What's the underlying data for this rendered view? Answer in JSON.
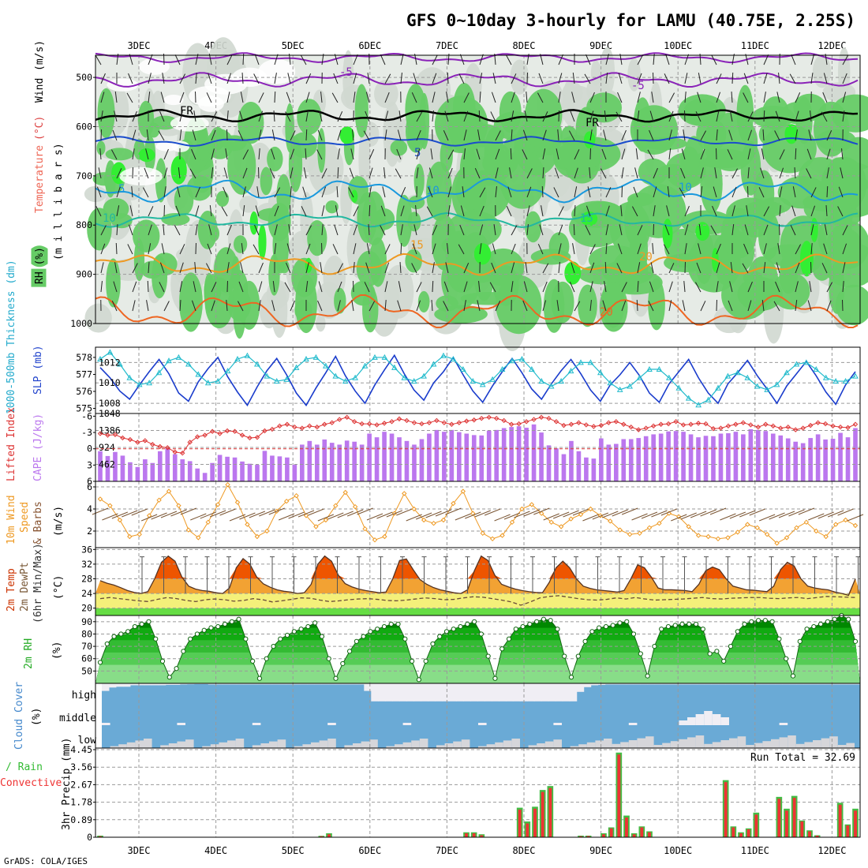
{
  "title": "GFS 0~10day 3-hourly for LAMU (40.75E, 2.25S)",
  "footer": "GrADS: COLA/IGES",
  "days": [
    "3DEC",
    "4DEC",
    "5DEC",
    "6DEC",
    "7DEC",
    "8DEC",
    "9DEC",
    "10DEC",
    "11DEC",
    "12DEC"
  ],
  "colors": {
    "grid": "#9a9a9a",
    "rh_green": "#66cc66",
    "rh_bright": "#33ee33",
    "rh_pale": "#d0d8d0",
    "slp": "#1a3ccc",
    "thick": "#22bbcc",
    "li": "#dd3333",
    "cape": "#bb77ee",
    "wind": "#ee9922",
    "temp_hot": "#ee5500",
    "temp_warm": "#f2a233",
    "dew_band": "#f4f07a",
    "green_band": "#66dd44",
    "rh_dark": "#009900",
    "cloud": "#6aaad6",
    "cloud_pale": "#f0eef4",
    "rain": "#ee3333",
    "total": "#44bb44"
  },
  "panels": {
    "upper": {
      "ylabel_parts": [
        "RH (%)",
        "Temperature",
        "(°C)",
        "Wind",
        "(m/s)"
      ],
      "yunit": "(m i l l i b a r s)",
      "yticks": [
        "500",
        "600",
        "700",
        "800",
        "900",
        "1000"
      ],
      "contour_labels": [
        "-5",
        "-5",
        "FR",
        "FR",
        "5",
        "5",
        "10",
        "10",
        "10",
        "15",
        "15",
        "20",
        "20",
        "25"
      ]
    },
    "slp": {
      "ylabel_left": "1000-500mb Thickness (dm)",
      "ylabel_right": "SLP (mb)",
      "left_ticks": [
        "578",
        "577",
        "576",
        "575"
      ],
      "right_ticks": [
        "1012",
        "1010",
        "1008"
      ]
    },
    "cape": {
      "ylabel_left": "Lifted Index",
      "ylabel_right": "CAPE (J/kg)",
      "left_ticks": [
        "-6",
        "-3",
        "0",
        "3",
        "6"
      ],
      "right_ticks": [
        "1848",
        "1386",
        "924",
        "462"
      ]
    },
    "wind10": {
      "ylabel": [
        "10m Wind",
        "Speed",
        "& Barbs"
      ],
      "yunit": "(m/s)",
      "yticks": [
        "6",
        "4",
        "2"
      ]
    },
    "temp2m": {
      "ylabel": [
        "2m Temp",
        "2m DewPt",
        "(6hr Min/Max)"
      ],
      "yunit": "(°C)",
      "yticks": [
        "36",
        "32",
        "28",
        "24",
        "20"
      ]
    },
    "rh2m": {
      "ylabel": "2m RH",
      "yunit": "(%)",
      "yticks": [
        "90",
        "80",
        "70",
        "60",
        "50"
      ]
    },
    "cloud": {
      "ylabel": "Cloud Cover",
      "yunit": "(%)",
      "levels": [
        "high",
        "middle",
        "low"
      ]
    },
    "precip": {
      "ylabel_green": "Total / Rain",
      "ylabel_red": "Convective",
      "yunit": "3hr Precip (mm)",
      "yticks": [
        "4.45",
        "3.56",
        "2.67",
        "1.78",
        "0.89",
        "0"
      ],
      "run_total": "Run Total = 32.69"
    }
  },
  "chart_data": [
    {
      "type": "line",
      "name": "SLP",
      "units": "mb",
      "ylim": [
        1007,
        1013.5
      ],
      "values": [
        1011.5,
        1010.5,
        1009.2,
        1008.4,
        1009.8,
        1011.1,
        1012.3,
        1010.9,
        1009.0,
        1008.2,
        1010.1,
        1011.4,
        1012.5,
        1010.6,
        1009.1,
        1007.8,
        1009.6,
        1011.2,
        1012.4,
        1010.8,
        1009.0,
        1007.8,
        1009.5,
        1011.0,
        1012.6,
        1010.7,
        1009.2,
        1008.0,
        1009.8,
        1011.3,
        1012.7,
        1010.9,
        1009.3,
        1008.3,
        1010.0,
        1011.1,
        1012.5,
        1010.8,
        1009.2,
        1008.1,
        1009.7,
        1011.1,
        1012.4,
        1011.0,
        1009.4,
        1008.4,
        1009.9,
        1011.2,
        1012.3,
        1010.9,
        1009.3,
        1008.2,
        1009.8,
        1010.8,
        1012.0,
        1010.7,
        1009.0,
        1008.1,
        1009.9,
        1011.1,
        1012.3,
        1010.5,
        1009.0,
        1008.0,
        1009.9,
        1011.0,
        1012.2,
        1010.7,
        1009.4,
        1008.0,
        1009.7,
        1010.9,
        1012.1,
        1010.7,
        1009.1,
        1007.9,
        1009.8,
        1011.1
      ]
    },
    {
      "type": "line",
      "name": "Thickness",
      "units": "dm",
      "ylim": [
        574.7,
        578.6
      ],
      "values": [
        577.9,
        578.3,
        577.6,
        576.8,
        576.4,
        576.5,
        577.1,
        577.8,
        578.0,
        577.6,
        577.0,
        576.5,
        576.6,
        577.2,
        577.9,
        578.1,
        577.6,
        576.9,
        576.6,
        576.7,
        577.4,
        577.9,
        578.0,
        577.5,
        576.9,
        576.6,
        576.8,
        577.5,
        578.0,
        578.0,
        577.4,
        576.8,
        576.6,
        576.9,
        577.6,
        578.1,
        577.9,
        577.3,
        576.6,
        576.4,
        576.7,
        577.3,
        577.8,
        577.9,
        577.3,
        576.6,
        576.3,
        576.6,
        577.2,
        577.7,
        577.7,
        577.1,
        576.5,
        576.1,
        576.3,
        576.8,
        577.3,
        577.3,
        576.8,
        576.2,
        575.6,
        575.2,
        575.5,
        576.2,
        576.9,
        577.1,
        576.8,
        576.3,
        576.1,
        576.4,
        577.1,
        577.6,
        577.7,
        577.3,
        576.8,
        576.6,
        576.6,
        576.9
      ]
    },
    {
      "type": "bar",
      "name": "CAPE",
      "units": "J/kg",
      "ylim": [
        0,
        1848
      ],
      "values": [
        820,
        690,
        800,
        700,
        520,
        390,
        600,
        500,
        820,
        900,
        740,
        600,
        550,
        350,
        230,
        500,
        720,
        670,
        650,
        540,
        480,
        450,
        830,
        700,
        680,
        650,
        450,
        1000,
        1100,
        1000,
        1140,
        1050,
        1000,
        1110,
        1080,
        1000,
        1300,
        1200,
        1350,
        1300,
        1200,
        1100,
        1000,
        1150,
        1300,
        1400,
        1350,
        1400,
        1340,
        1300,
        1260,
        1250,
        1380,
        1400,
        1450,
        1480,
        1500,
        1460,
        1550,
        1330,
        980,
        900,
        740,
        1100,
        820,
        650,
        620,
        1170,
        1000,
        1020,
        1150,
        1150,
        1180,
        1230,
        1280,
        1300,
        1360,
        1370,
        1350,
        1280,
        1200,
        1240,
        1230,
        1300,
        1310,
        1350,
        1280,
        1420,
        1400,
        1370,
        1300,
        1250,
        1170,
        1080,
        1040,
        1180,
        1280,
        1140,
        1160,
        1320,
        1200,
        1450
      ]
    },
    {
      "type": "line",
      "name": "Lifted Index",
      "ylim": [
        6,
        -6.5
      ],
      "values": [
        -2.8,
        -2.5,
        -2.6,
        -2.0,
        -1.7,
        -1.2,
        -1.5,
        -0.8,
        -0.4,
        -0.2,
        0.6,
        0.8,
        -1.2,
        -2.2,
        -2.5,
        -3.2,
        -2.8,
        -3.3,
        -3.2,
        -2.5,
        -2.0,
        -2.1,
        -3.3,
        -3.6,
        -4.2,
        -4.5,
        -4.0,
        -3.8,
        -4.2,
        -4.0,
        -4.5,
        -4.8,
        -5.4,
        -5.8,
        -5.0,
        -4.6,
        -4.6,
        -4.4,
        -4.7,
        -5.0,
        -5.5,
        -5.2,
        -4.8,
        -4.6,
        -4.8,
        -5.2,
        -4.8,
        -4.5,
        -4.8,
        -5.1,
        -5.3,
        -5.6,
        -5.8,
        -5.6,
        -5.2,
        -4.5,
        -4.6,
        -5.0,
        -5.4,
        -5.8,
        -5.6,
        -5.0,
        -4.3,
        -4.5,
        -4.8,
        -4.4,
        -4.1,
        -4.3,
        -4.8,
        -5.0,
        -4.5,
        -4.0,
        -3.5,
        -3.8,
        -4.2,
        -4.5,
        -4.6,
        -5.0,
        -4.4,
        -4.5,
        -4.7,
        -4.6,
        -3.7,
        -3.8,
        -4.2,
        -4.5,
        -4.8,
        -4.4,
        -4.0,
        -4.5,
        -4.2,
        -3.8,
        -4.0,
        -3.5,
        -3.8,
        -4.3,
        -4.8,
        -4.6,
        -4.2,
        -4.0,
        -3.9,
        -4.5
      ]
    },
    {
      "type": "line",
      "name": "10m Wind Speed",
      "units": "m/s",
      "ylim": [
        0.5,
        6.5
      ],
      "values": [
        4.9,
        4.3,
        3.0,
        1.5,
        1.7,
        3.4,
        4.8,
        5.6,
        4.3,
        2.1,
        1.4,
        2.8,
        4.4,
        6.2,
        4.6,
        2.6,
        1.5,
        2.0,
        3.8,
        4.7,
        5.2,
        3.4,
        2.4,
        3.0,
        4.3,
        5.5,
        4.2,
        2.2,
        1.2,
        1.5,
        3.6,
        5.4,
        4.0,
        3.0,
        2.7,
        3.0,
        4.5,
        5.6,
        3.6,
        1.8,
        1.3,
        1.6,
        2.8,
        4.0,
        4.4,
        3.6,
        2.8,
        2.4,
        3.1,
        3.5,
        4.0,
        3.4,
        2.9,
        2.1,
        1.7,
        1.8,
        2.3,
        2.7,
        3.6,
        3.3,
        2.4,
        1.6,
        1.5,
        1.3,
        1.4,
        1.9,
        2.6,
        2.3,
        1.7,
        0.9,
        1.4,
        2.3,
        2.8,
        2.0,
        1.5,
        2.6,
        3.0,
        2.5
      ]
    },
    {
      "type": "area",
      "name": "2m Temp",
      "units": "°C",
      "ylim": [
        18,
        36.5
      ],
      "values": [
        27.5,
        26.8,
        26.3,
        25.6,
        24.8,
        24.3,
        24.0,
        24.5,
        28.0,
        32.5,
        34.2,
        32.8,
        28.5,
        26.0,
        25.2,
        24.8,
        24.6,
        24.2,
        24.0,
        25.5,
        31.0,
        33.5,
        32.0,
        28.5,
        26.6,
        25.7,
        25.0,
        24.6,
        24.4,
        24.0,
        24.2,
        26.5,
        32.0,
        34.2,
        32.8,
        29.0,
        26.7,
        25.8,
        25.2,
        24.8,
        24.5,
        24.2,
        24.4,
        28.0,
        33.0,
        33.4,
        30.5,
        27.8,
        26.5,
        25.6,
        25.0,
        24.6,
        24.2,
        24.0,
        25.0,
        30.2,
        34.2,
        33.0,
        29.0,
        26.5,
        25.8,
        25.2,
        24.8,
        24.5,
        24.3,
        24.2,
        27.0,
        31.0,
        32.8,
        31.0,
        28.0,
        26.0,
        25.4,
        25.0,
        24.8,
        24.6,
        24.4,
        24.8,
        28.0,
        31.8,
        31.0,
        28.5,
        25.5,
        25.0,
        25.0,
        24.9,
        24.8,
        24.5,
        26.5,
        30.2,
        31.2,
        30.5,
        28.0,
        26.0,
        25.5,
        25.0,
        24.9,
        24.7,
        24.5,
        26.0,
        30.5,
        32.5,
        31.5,
        28.0,
        26.0,
        25.5,
        25.2,
        25.0,
        24.4,
        24.0,
        23.5,
        28.0
      ]
    },
    {
      "type": "line",
      "name": "2m DewPt",
      "units": "°C",
      "ylim": [
        18,
        36.5
      ],
      "values": [
        22.6,
        22.9,
        22.6,
        22.3,
        22.0,
        21.8,
        22.4,
        22.9,
        22.6,
        22.1,
        21.8,
        22.3,
        22.5,
        22.3,
        21.9,
        22.1,
        22.6,
        22.3,
        21.7,
        22.0,
        22.4,
        22.8,
        22.7,
        22.2,
        21.8,
        22.0,
        22.3,
        22.5,
        22.6,
        22.4,
        22.1,
        22.0,
        22.2,
        22.5,
        22.8,
        22.6,
        22.3,
        22.4,
        22.8,
        23.1,
        23.0,
        22.6,
        22.2,
        21.7,
        20.8,
        21.7,
        22.8,
        23.2,
        23.4,
        23.0,
        22.6,
        22.3,
        22.2,
        22.4,
        22.8,
        22.5,
        22.9,
        22.5,
        22.2,
        22.3,
        22.4,
        22.5,
        22.7,
        22.9,
        22.6,
        22.5,
        22.7,
        22.8,
        22.9,
        22.9,
        22.7,
        22.6,
        22.8,
        22.9,
        22.6,
        22.9,
        23.2,
        23.1,
        23.0,
        22.9
      ]
    },
    {
      "type": "area",
      "name": "2m RH",
      "units": "%",
      "ylim": [
        40,
        95
      ],
      "values": [
        57,
        72,
        78,
        80,
        82,
        86,
        88,
        90,
        76,
        58,
        45,
        52,
        66,
        76,
        80,
        83,
        85,
        86,
        88,
        90,
        92,
        76,
        58,
        44,
        60,
        70,
        76,
        79,
        82,
        84,
        86,
        89,
        78,
        60,
        44,
        56,
        66,
        74,
        78,
        82,
        84,
        86,
        88,
        88,
        76,
        58,
        43,
        58,
        72,
        78,
        82,
        84,
        86,
        88,
        90,
        80,
        62,
        44,
        68,
        76,
        84,
        86,
        88,
        90,
        92,
        91,
        84,
        62,
        45,
        62,
        74,
        82,
        85,
        86,
        87,
        89,
        90,
        80,
        64,
        46,
        70,
        84,
        86,
        87,
        88,
        88,
        88,
        84,
        64,
        66,
        58,
        70,
        82,
        88,
        90,
        91,
        91,
        90,
        76,
        60,
        46,
        74,
        84,
        86,
        88,
        90,
        92,
        95,
        92,
        74
      ]
    },
    {
      "type": "bar",
      "name": "Cloud Cover high",
      "units": "%",
      "values": [
        40,
        22,
        18,
        18,
        10,
        10,
        10,
        10,
        10,
        8,
        8,
        6,
        5,
        4,
        4,
        6,
        6,
        6,
        6,
        6,
        6,
        6,
        6,
        6,
        6,
        6,
        6,
        6,
        6,
        6,
        6,
        6,
        6,
        6,
        6,
        6,
        6,
        40,
        95,
        95,
        95,
        95,
        95,
        95,
        95,
        95,
        95,
        95,
        95,
        95,
        95,
        95,
        95,
        95,
        95,
        95,
        95,
        95,
        95,
        95,
        95,
        95,
        95,
        95,
        95,
        95,
        95,
        45,
        20,
        10,
        8,
        6,
        6,
        6,
        6,
        6,
        6,
        6,
        6,
        6,
        6,
        6,
        6,
        6,
        6,
        6,
        6,
        6,
        6,
        6,
        6,
        6,
        6,
        6,
        6,
        6,
        6,
        6,
        6,
        6,
        6,
        6,
        6,
        6,
        6,
        6,
        6
      ]
    },
    {
      "type": "bar",
      "name": "3hr Precip Total",
      "units": "mm",
      "ylim": [
        0,
        4.45
      ],
      "values": [
        0.08,
        0,
        0,
        0,
        0,
        0,
        0,
        0,
        0,
        0,
        0,
        0,
        0,
        0,
        0,
        0,
        0,
        0,
        0,
        0,
        0,
        0,
        0,
        0,
        0,
        0,
        0,
        0,
        0,
        0.07,
        0.2,
        0,
        0,
        0,
        0,
        0,
        0,
        0,
        0,
        0,
        0,
        0,
        0,
        0,
        0,
        0,
        0,
        0,
        0.25,
        0.25,
        0.15,
        0,
        0,
        0,
        0,
        1.5,
        0.8,
        1.55,
        2.4,
        2.6,
        0,
        0,
        0,
        0.08,
        0.08,
        0,
        0.2,
        0.5,
        4.3,
        1.1,
        0.2,
        0.55,
        0.3,
        0,
        0,
        0,
        0,
        0,
        0,
        0,
        0,
        0,
        2.9,
        0.55,
        0.25,
        0.45,
        1.25,
        0,
        0,
        2.05,
        1.45,
        2.1,
        0.85,
        0.35,
        0.1,
        0,
        0,
        1.75,
        0.65,
        1.45
      ]
    },
    {
      "type": "bar",
      "name": "3hr Precip Convective",
      "units": "mm",
      "ylim": [
        0,
        4.45
      ],
      "values": [
        0.05,
        0,
        0,
        0,
        0,
        0,
        0,
        0,
        0,
        0,
        0,
        0,
        0,
        0,
        0,
        0,
        0,
        0,
        0,
        0,
        0,
        0,
        0,
        0,
        0,
        0,
        0,
        0,
        0,
        0.05,
        0.15,
        0,
        0,
        0,
        0,
        0,
        0,
        0,
        0,
        0,
        0,
        0,
        0,
        0,
        0,
        0,
        0,
        0,
        0.2,
        0.2,
        0.1,
        0,
        0,
        0,
        0,
        1.4,
        0.7,
        1.45,
        2.3,
        2.5,
        0,
        0,
        0,
        0.05,
        0.06,
        0,
        0.15,
        0.45,
        4.2,
        1.0,
        0.15,
        0.5,
        0.25,
        0,
        0,
        0,
        0,
        0,
        0,
        0,
        0,
        0,
        2.8,
        0.5,
        0.2,
        0.4,
        1.15,
        0,
        0,
        1.95,
        1.35,
        2.0,
        0.8,
        0.3,
        0.08,
        0,
        0,
        1.65,
        0.6,
        1.35
      ]
    }
  ]
}
